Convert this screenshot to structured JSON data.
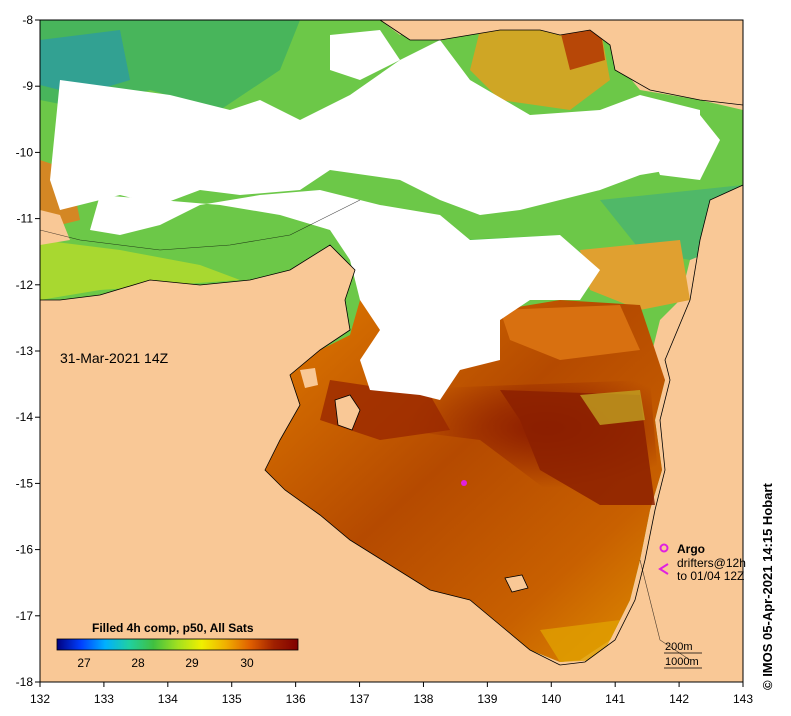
{
  "map": {
    "date_label": "31-Mar-2021 14Z",
    "credit": "© IMOS 05-Apr-2021 14:15 Hobart",
    "colorbar_title": "Filled 4h comp, p50, All Sats",
    "colorbar_ticks": [
      "27",
      "28",
      "29",
      "30"
    ],
    "lon_ticks": [
      "132",
      "133",
      "134",
      "135",
      "136",
      "137",
      "138",
      "139",
      "140",
      "141",
      "142",
      "143"
    ],
    "lat_ticks": [
      "-8",
      "-9",
      "-10",
      "-11",
      "-12",
      "-13",
      "-14",
      "-15",
      "-16",
      "-17",
      "-18"
    ],
    "legend": {
      "argo": "Argo",
      "drifters": "drifters@12h",
      "drifters_to": "to 01/04 12Z",
      "depth_200": "200m",
      "depth_1000": "1000m"
    },
    "colors": {
      "land": "#f9c896",
      "no_data": "#ffffff",
      "argo": "#e020e0",
      "scale": [
        "#000080",
        "#0040ff",
        "#00b0ff",
        "#20d0a0",
        "#40c040",
        "#a0e020",
        "#f0f000",
        "#f0b000",
        "#e06000",
        "#a02000",
        "#800000"
      ]
    }
  }
}
